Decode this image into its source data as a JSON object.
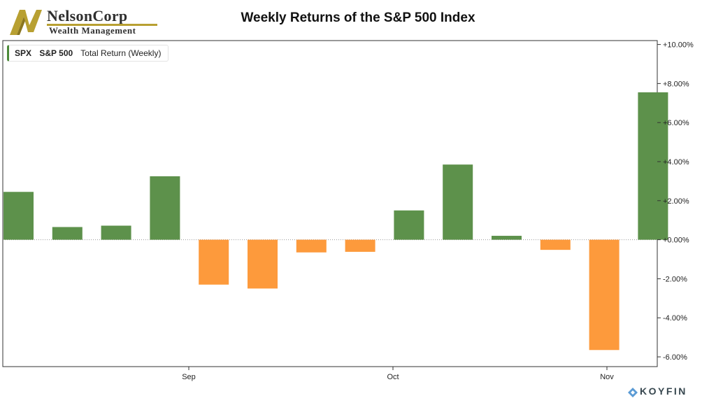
{
  "logo": {
    "name": "NelsonCorp",
    "subtitle": "Wealth Management"
  },
  "chart_data": {
    "type": "bar",
    "title": "Weekly Returns of the S&P 500 Index",
    "legend": {
      "ticker": "SPX",
      "name": "S&P 500",
      "metric": "Total Return (Weekly)",
      "placement": "top-left"
    },
    "x_tick_labels": [
      "Sep",
      "Oct",
      "Nov"
    ],
    "y_tick_labels": [
      "+10.00%",
      "+8.00%",
      "+6.00%",
      "+4.00%",
      "+2.00%",
      "+0.00%",
      "-2.00%",
      "-4.00%",
      "-6.00%"
    ],
    "y_ticks": [
      10,
      8,
      6,
      4,
      2,
      0,
      -2,
      -4,
      -6
    ],
    "ylim": [
      -6.5,
      10.2
    ],
    "values": [
      2.45,
      0.65,
      0.72,
      3.25,
      -2.3,
      -2.5,
      -0.65,
      -0.62,
      1.5,
      3.85,
      0.2,
      -0.52,
      -5.65,
      7.55
    ],
    "colors": {
      "positive": "#5d914b",
      "negative": "#fd9a3c"
    },
    "grid": false
  },
  "brand": "KOYFIN"
}
